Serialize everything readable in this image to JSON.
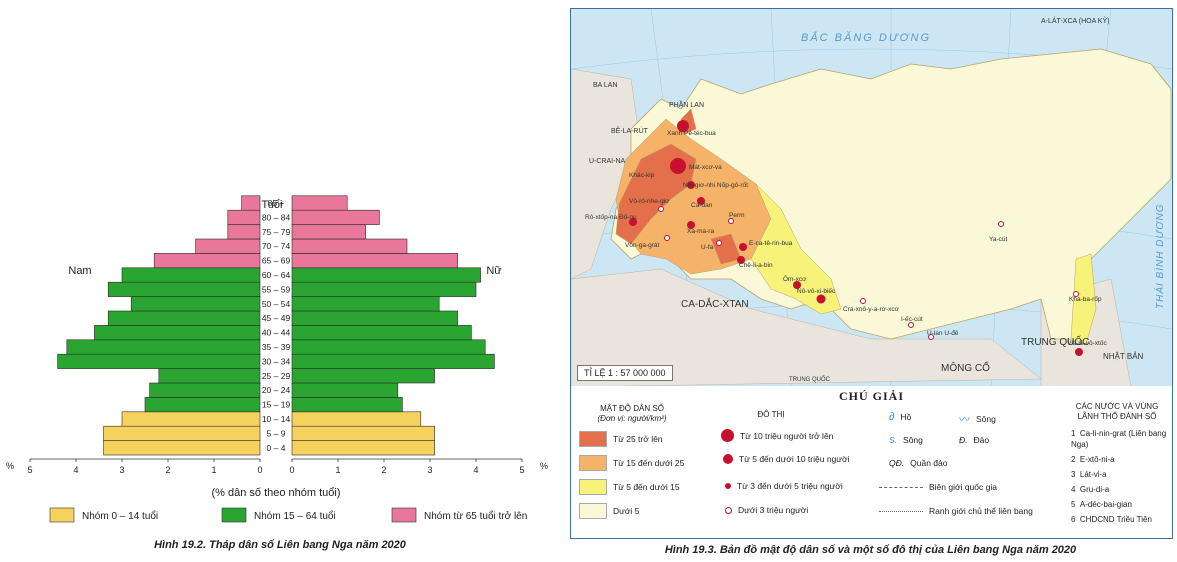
{
  "chart_data": [
    {
      "type": "bar",
      "subtype": "population-pyramid",
      "title": "",
      "caption": "Hình 19.2. Tháp dân số Liên bang Nga năm 2020",
      "ylabel": "Tuổi",
      "xlabel": "(% dân số theo nhóm tuổi)",
      "x_unit": "%",
      "left_label": "Nam",
      "right_label": "Nữ",
      "xlim": [
        0,
        5
      ],
      "x_ticks": [
        "5",
        "4",
        "3",
        "2",
        "1",
        "0",
        "0",
        "1",
        "2",
        "3",
        "4",
        "5"
      ],
      "categories": [
        "0 – 4",
        "5 – 9",
        "10 – 14",
        "15 – 19",
        "20 – 24",
        "25 – 29",
        "30 – 34",
        "35 – 39",
        "40 – 44",
        "45 – 49",
        "50 – 54",
        "55 – 59",
        "60 – 64",
        "65 – 69",
        "70 – 74",
        "75 – 79",
        "80 – 84",
        "85 +"
      ],
      "series": [
        {
          "name": "Nam",
          "values": [
            3.4,
            3.4,
            3.0,
            2.5,
            2.4,
            2.2,
            4.4,
            4.2,
            3.6,
            3.3,
            2.8,
            3.3,
            3.0,
            2.3,
            1.4,
            0.7,
            0.7,
            0.4
          ]
        },
        {
          "name": "Nữ",
          "values": [
            3.1,
            3.1,
            2.8,
            2.4,
            2.3,
            3.1,
            4.4,
            4.2,
            3.9,
            3.6,
            3.2,
            4.0,
            4.1,
            3.6,
            2.5,
            1.6,
            1.9,
            1.2
          ]
        }
      ],
      "group_colors": {
        "0-14": "#f5d25e",
        "15-64": "#2aa532",
        "65+": "#e8779b"
      },
      "legend": [
        {
          "label": "Nhóm 0 – 14 tuổi",
          "color": "#f5d25e"
        },
        {
          "label": "Nhóm 15 – 64 tuổi",
          "color": "#2aa532"
        },
        {
          "label": "Nhóm từ 65 tuổi trở lên",
          "color": "#e8779b"
        }
      ]
    }
  ],
  "map": {
    "caption": "Hình 19.3. Bản đồ mật độ dân số và một số đô thị của Liên bang Nga năm 2020",
    "ocean_label": "BẮC BĂNG DƯƠNG",
    "pacific_label": "THÁI BÌNH DƯƠNG",
    "alaska_label": "A-LÁT-XCA (HOA KỲ)",
    "scale": "TỈ LỆ 1 : 57 000 000",
    "countries": {
      "kazakhstan": "CA-DẮC-XTAN",
      "mongolia": "MÔNG CỔ",
      "china": "TRUNG QUỐC",
      "japan": "NHẬT BẢN",
      "finland": "PHẦN LAN",
      "poland": "BA LAN",
      "belarus": "BÊ-LA-RÚT",
      "ukraine": "U-CRAI-NA",
      "china_small": "TRUNG QUỐC"
    },
    "cities": {
      "moscow": "Mát-xcơ-va",
      "stpetersburg": "Xanh Pê-téc-bua",
      "novosibirsk": "Nô-vô-xi-biếc",
      "ekaterinburg": "E-ca-tê-rin-bua",
      "chelyabinsk": "Chê-li-a-bin",
      "omsk": "Ôm-xcơ",
      "volgograd": "Vôn-ga-grát",
      "kazan": "Ca-dan",
      "samara": "Xa-ma-ra",
      "perm": "Perm",
      "ufa": "U-fa",
      "rostov": "Rô-xtốp-na Đô-nu",
      "nizhny": "Nhi-giơ-nhi Nốp-gô-rốt",
      "voronezh": "Vô-rô-nhe-giơ",
      "kharkiv": "Khác-kip",
      "vladivostok": "Vla-đi-vô-xtốc",
      "khabarovsk": "Kha-ba-rốp",
      "yakutsk": "Ya-cút",
      "irkutsk": "I-ếc-cút",
      "ulanude": "U-lan U-đê",
      "krasnoyarsk": "Cra-xnô-y-a-rơ-xcơ"
    },
    "legend": {
      "title": "CHÚ GIẢI",
      "density_head": "MẬT ĐỘ DÂN SỐ",
      "density_unit": "(Đơn vị: người/km²)",
      "density_items": [
        {
          "label": "Từ 25 trở lên",
          "color": "#e4704b"
        },
        {
          "label": "Từ 15 đến dưới 25",
          "color": "#f5b36a"
        },
        {
          "label": "Từ 5 đến dưới 15",
          "color": "#f6f27a"
        },
        {
          "label": "Dưới 5",
          "color": "#fbf8d8"
        }
      ],
      "city_head": "ĐÔ THỊ",
      "city_items": [
        {
          "label": "Từ 10 triệu người trở lên"
        },
        {
          "label": "Từ 5 đến dưới 10 triệu người"
        },
        {
          "label": "Từ 3 đến dưới 5 triệu người"
        },
        {
          "label": "Dưới 3 triệu người"
        }
      ],
      "hydro": {
        "lake_sym": "Hồ",
        "river": "Sông",
        "river2": "Sông",
        "island": "Đảo",
        "island_sym": "Đ.",
        "river_sym": "S.",
        "archipelago_sym": "QĐ.",
        "archipelago": "Quần đảo"
      },
      "border_nat": "Biên giới quốc gia",
      "border_sub": "Ranh giới chủ thể liên bang",
      "countries_head": "CÁC NƯỚC VÀ VÙNG LÃNH THỔ ĐÁNH SỐ",
      "countries_list": [
        {
          "n": "1",
          "name": "Ca-li-nin-grat (Liên bang Nga)"
        },
        {
          "n": "2",
          "name": "E-xtô-ni-a"
        },
        {
          "n": "3",
          "name": "Lát-vi-a"
        },
        {
          "n": "4",
          "name": "Gru-di-a"
        },
        {
          "n": "5",
          "name": "A-déc-bai-gian"
        },
        {
          "n": "6",
          "name": "CHDCND Triều Tiên"
        }
      ]
    }
  }
}
